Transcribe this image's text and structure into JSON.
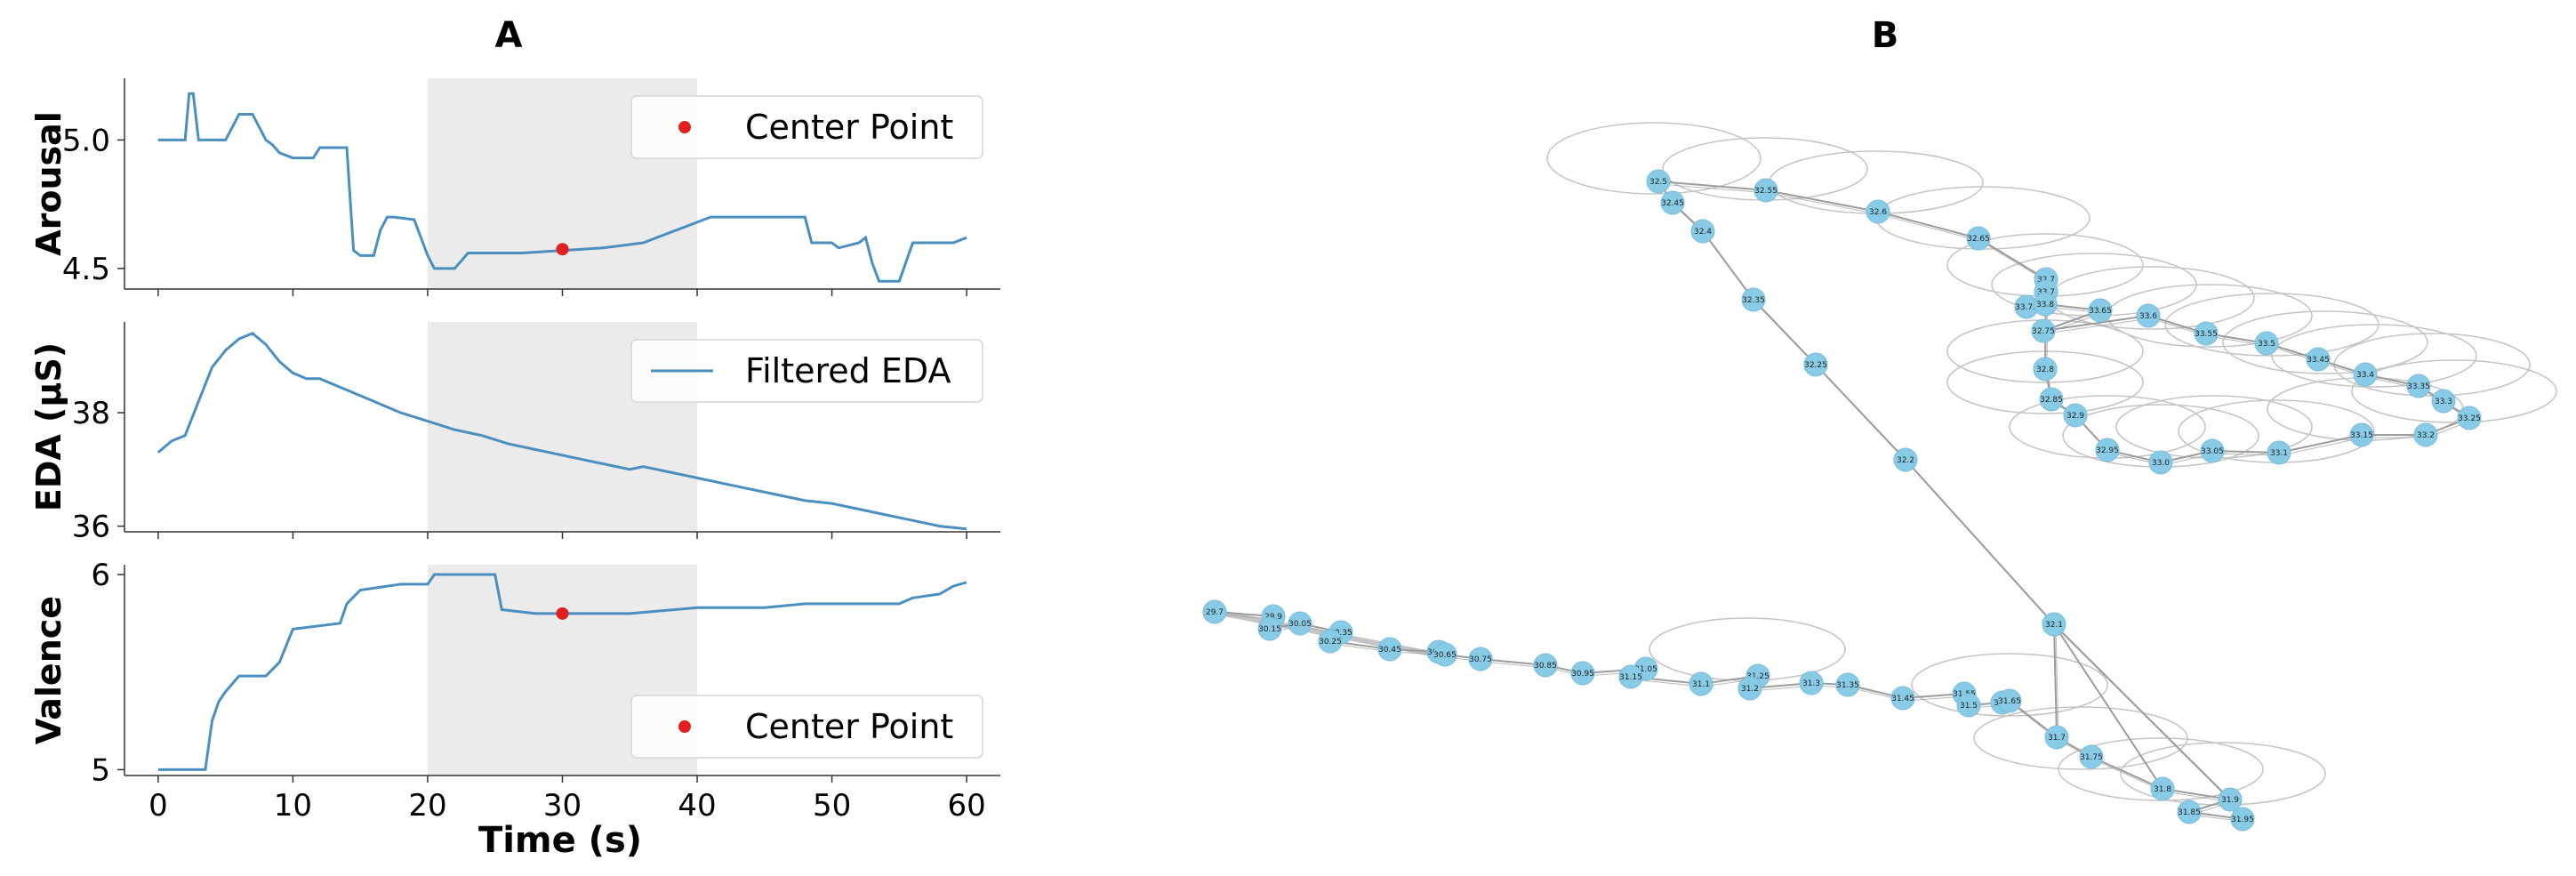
{
  "panels": {
    "a_title": "A",
    "b_title": "B"
  },
  "colors": {
    "line": "#4a8fc0",
    "center": "#e21f1f",
    "shade": "#ebebeb",
    "node": "#88cbe6",
    "edge": "#9c9c9c",
    "loop": "#c4c4c4"
  },
  "chart_data": [
    {
      "type": "line",
      "panel": "A",
      "ylabel": "Arousal",
      "xlabel": "",
      "xlim": [
        -2.5,
        62.5
      ],
      "ylim": [
        4.42,
        5.24
      ],
      "yticks": [
        "4.5",
        "5.0"
      ],
      "shaded_x": [
        20,
        40
      ],
      "x": [
        0,
        2,
        2.3,
        2.6,
        3,
        5,
        6,
        7,
        8,
        8.5,
        9,
        10,
        11.5,
        12,
        14,
        14.5,
        15,
        16,
        16.5,
        17,
        17.5,
        19,
        20,
        20.5,
        22,
        23,
        25,
        27,
        30,
        33,
        36,
        38,
        40,
        41,
        44,
        48,
        48.5,
        50,
        50.5,
        52,
        52.5,
        53,
        53.5,
        54,
        55,
        56,
        58,
        59,
        60
      ],
      "y": [
        5.0,
        5.0,
        5.18,
        5.18,
        5.0,
        5.0,
        5.1,
        5.1,
        5.0,
        4.98,
        4.95,
        4.93,
        4.93,
        4.97,
        4.97,
        4.57,
        4.55,
        4.55,
        4.65,
        4.7,
        4.7,
        4.69,
        4.55,
        4.5,
        4.5,
        4.56,
        4.56,
        4.56,
        4.57,
        4.58,
        4.6,
        4.64,
        4.68,
        4.7,
        4.7,
        4.7,
        4.6,
        4.6,
        4.58,
        4.6,
        4.62,
        4.52,
        4.45,
        4.45,
        4.45,
        4.6,
        4.6,
        4.6,
        4.62
      ],
      "markers": {
        "x": [
          30
        ],
        "y": [
          4.575
        ]
      },
      "legend": {
        "label": "Center Point",
        "placement": "top-right"
      }
    },
    {
      "type": "line",
      "panel": "A",
      "ylabel": "EDA (µS)",
      "xlabel": "",
      "xlim": [
        -2.5,
        62.5
      ],
      "ylim": [
        35.9,
        39.6
      ],
      "yticks": [
        "36",
        "38"
      ],
      "shaded_x": [
        20,
        40
      ],
      "x": [
        0,
        1,
        2,
        3,
        4,
        5,
        6,
        7,
        8,
        9,
        10,
        11,
        12,
        13,
        14,
        15,
        16,
        18,
        20,
        22,
        24,
        26,
        28,
        30,
        32,
        34,
        35,
        36,
        37,
        38,
        40,
        42,
        44,
        46,
        48,
        50,
        52,
        54,
        56,
        58,
        60
      ],
      "y": [
        37.3,
        37.5,
        37.6,
        38.2,
        38.8,
        39.1,
        39.3,
        39.4,
        39.2,
        38.9,
        38.7,
        38.6,
        38.6,
        38.5,
        38.4,
        38.3,
        38.2,
        38.0,
        37.85,
        37.7,
        37.6,
        37.45,
        37.35,
        37.25,
        37.15,
        37.05,
        37.0,
        37.05,
        37.0,
        36.95,
        36.85,
        36.75,
        36.65,
        36.55,
        36.45,
        36.4,
        36.3,
        36.2,
        36.1,
        36.0,
        35.95
      ],
      "legend": {
        "label": "Filtered EDA",
        "placement": "top-right"
      }
    },
    {
      "type": "line",
      "panel": "A",
      "ylabel": "Valence",
      "xlabel": "Time (s)",
      "xlim": [
        -2.5,
        62.5
      ],
      "ylim": [
        4.97,
        6.05
      ],
      "yticks": [
        "5",
        "6"
      ],
      "xticks": [
        "0",
        "10",
        "20",
        "30",
        "40",
        "50",
        "60"
      ],
      "shaded_x": [
        20,
        40
      ],
      "x": [
        0,
        3.5,
        4,
        4.5,
        5,
        6,
        7,
        8,
        9,
        10,
        13.5,
        14,
        15,
        18,
        20,
        20.5,
        24,
        25,
        25.5,
        28,
        30,
        35,
        40,
        45,
        48,
        53,
        55,
        56,
        58,
        59,
        60
      ],
      "y": [
        5.0,
        5.0,
        5.25,
        5.35,
        5.4,
        5.48,
        5.48,
        5.48,
        5.55,
        5.72,
        5.75,
        5.85,
        5.92,
        5.95,
        5.95,
        6.0,
        6.0,
        6.0,
        5.82,
        5.8,
        5.8,
        5.8,
        5.83,
        5.83,
        5.85,
        5.85,
        5.85,
        5.88,
        5.9,
        5.94,
        5.96
      ],
      "markers": {
        "x": [
          30
        ],
        "y": [
          5.8
        ]
      },
      "legend": {
        "label": "Center Point",
        "placement": "bottom-right"
      }
    },
    {
      "type": "network",
      "panel": "B",
      "nodes": [
        "29.7",
        "29.9",
        "30.15",
        "30.05",
        "30.35",
        "30.25",
        "30.45",
        "30.55",
        "30.65",
        "30.75",
        "30.85",
        "30.95",
        "31.05",
        "31.15",
        "31.1",
        "31.25",
        "31.2",
        "31.3",
        "31.35",
        "31.45",
        "31.55",
        "31.5",
        "31.6",
        "31.65",
        "31.7",
        "31.75",
        "31.8",
        "31.9",
        "31.85",
        "31.95",
        "32.1",
        "32.2",
        "32.25",
        "32.35",
        "32.4",
        "32.45",
        "32.5",
        "32.55",
        "32.6",
        "32.65",
        "32.7",
        "33.7",
        "33.75",
        "33.8",
        "33.65",
        "32.75",
        "33.6",
        "33.55",
        "33.5",
        "33.45",
        "33.4",
        "33.35",
        "33.3",
        "33.25",
        "33.2",
        "33.15",
        "33.1",
        "33.05",
        "33.0",
        "32.95",
        "32.9",
        "32.85",
        "32.8"
      ]
    }
  ]
}
